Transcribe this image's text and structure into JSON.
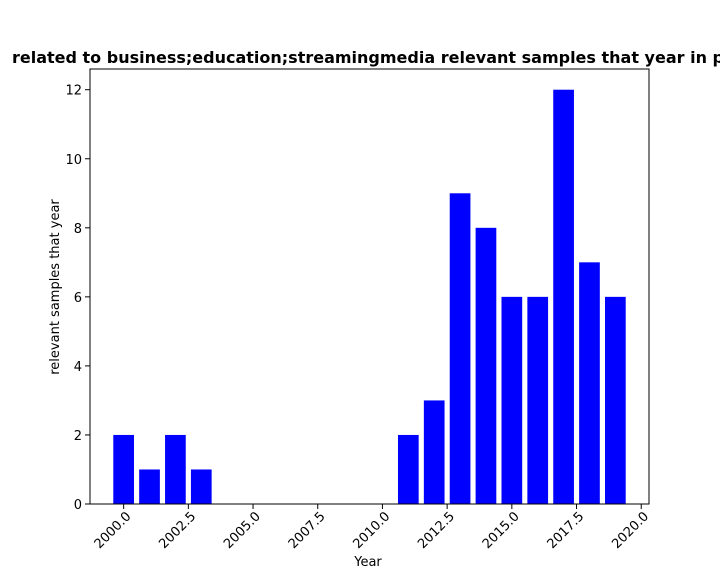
{
  "chart_data": {
    "type": "bar",
    "title": "related to business;education;streamingmedia relevant samples that year in p",
    "xlabel": "Year",
    "ylabel": "relevant samples that year",
    "x": [
      2000,
      2001,
      2002,
      2003,
      2011,
      2012,
      2013,
      2014,
      2015,
      2016,
      2017,
      2018,
      2019
    ],
    "values": [
      2,
      1,
      2,
      1,
      2,
      3,
      9,
      8,
      6,
      6,
      12,
      7,
      6
    ],
    "bar_width": 0.8,
    "xlim": [
      1998.7,
      2020.3
    ],
    "ylim": [
      0,
      12.6
    ],
    "xticks": [
      "2000.0",
      "2002.5",
      "2005.0",
      "2007.5",
      "2010.0",
      "2012.5",
      "2015.0",
      "2017.5",
      "2020.0"
    ],
    "xtick_rotation_deg": 45,
    "yticks": [
      "0",
      "2",
      "4",
      "6",
      "8",
      "10",
      "12"
    ],
    "bar_color": "#0000ff",
    "grid": false,
    "legend": "none"
  }
}
